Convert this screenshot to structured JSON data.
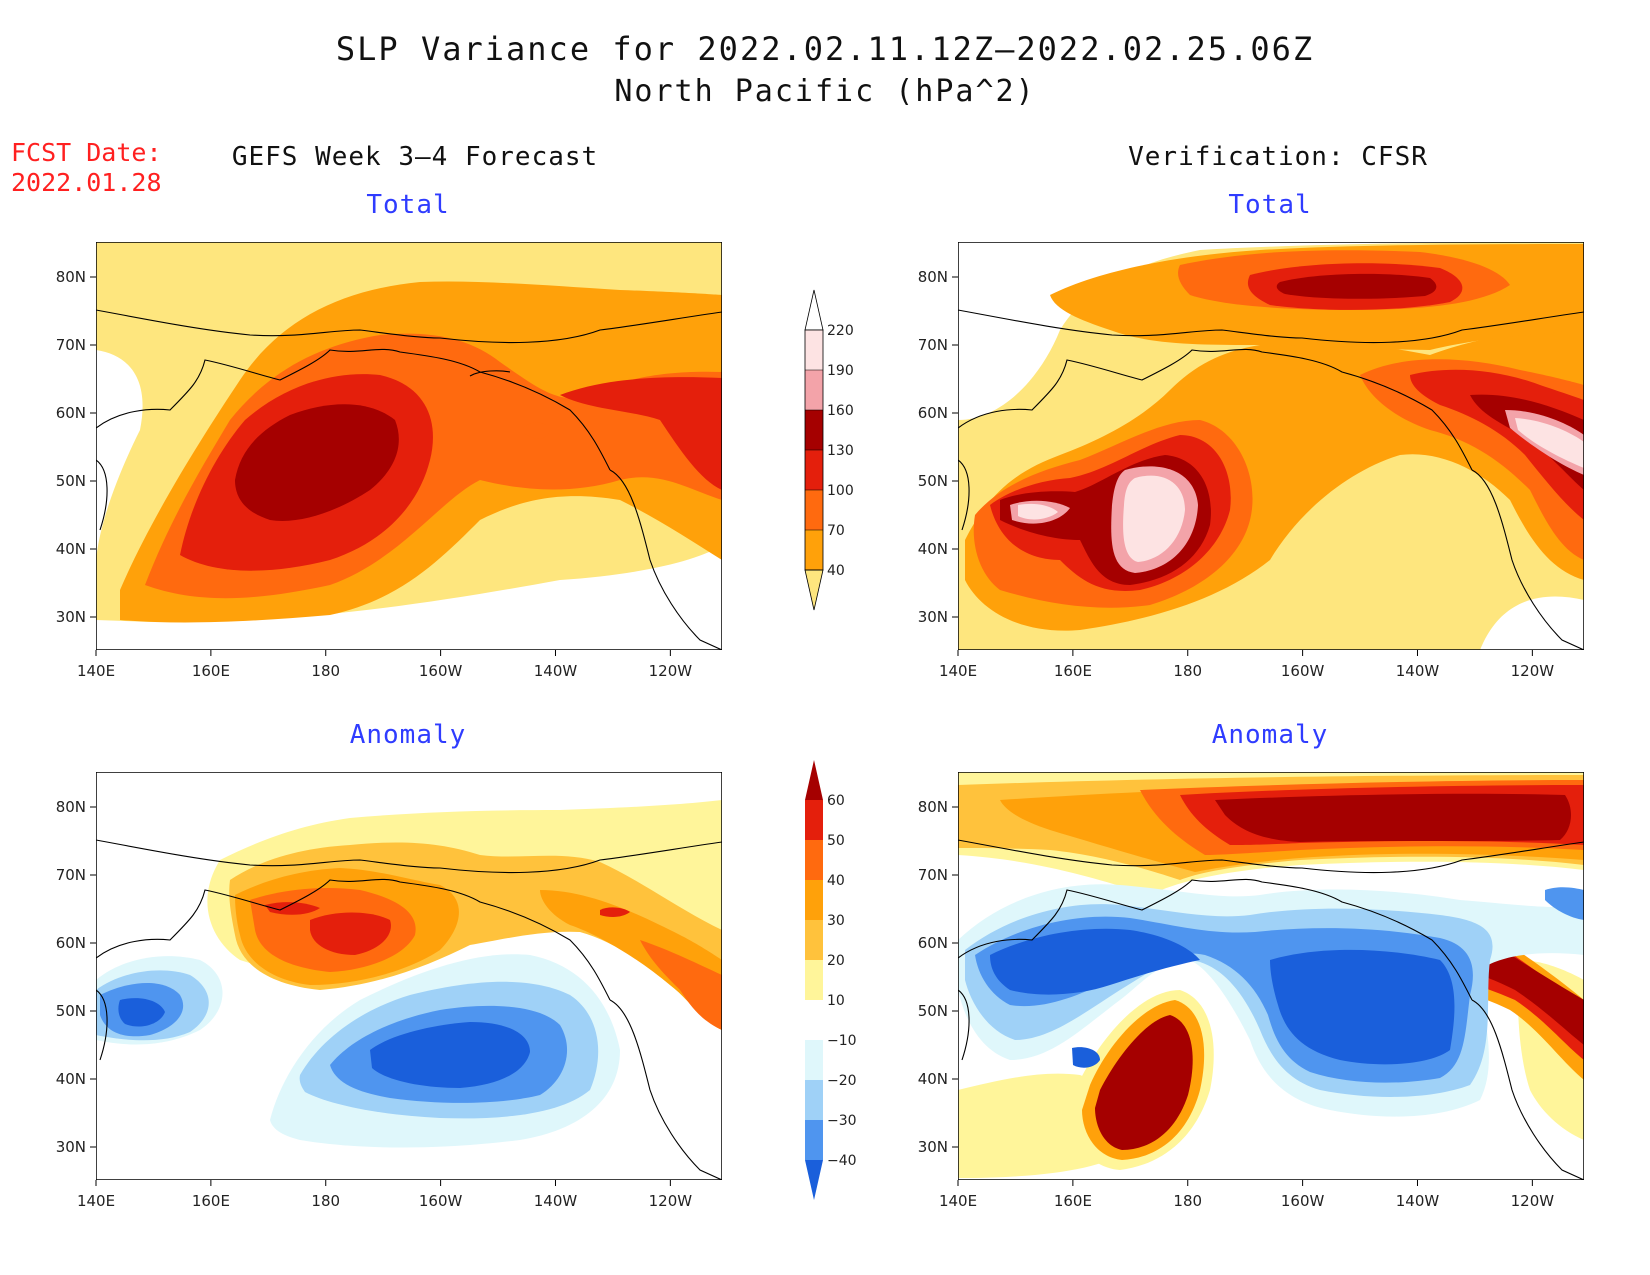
{
  "title": "SLP Variance for 2022.02.11.12Z–2022.02.25.06Z",
  "subtitle": "North Pacific (hPa^2)",
  "fcst_date_label": "FCST Date:",
  "fcst_date_value": "2022.01.28",
  "left_column_title": "GEFS Week 3–4 Forecast",
  "right_column_title": "Verification: CFSR",
  "panels": [
    {
      "title": "Total"
    },
    {
      "title": "Total"
    },
    {
      "title": "Anomaly"
    },
    {
      "title": "Anomaly"
    }
  ],
  "lon_labels": [
    "140E",
    "160E",
    "180",
    "160W",
    "140W",
    "120W"
  ],
  "lat_labels": [
    "80N",
    "70N",
    "60N",
    "50N",
    "40N",
    "30N"
  ],
  "colorbars": {
    "total": {
      "levels": [
        "40",
        "70",
        "100",
        "130",
        "160",
        "190",
        "220"
      ],
      "colors": [
        "#fee67e",
        "#ffa10a",
        "#ff6a0f",
        "#e41f0c",
        "#a50000",
        "#f3a3a9",
        "#fde3e3"
      ]
    },
    "anomaly": {
      "levels": [
        "60",
        "50",
        "40",
        "30",
        "20",
        "10",
        "−10",
        "−20",
        "−30",
        "−40"
      ],
      "colors": [
        "#a50000",
        "#e41f0c",
        "#ff6a0f",
        "#ffa10a",
        "#ffc23c",
        "#fff59a",
        "#ffffff",
        "#dff7fb",
        "#9fd1f7",
        "#4f95ef",
        "#1a5fdb"
      ]
    }
  },
  "legend_colors": {
    "total_levels_color": [
      "#fee67e",
      "#ffa10a",
      "#ff6a0f",
      "#e41f0c",
      "#a50000",
      "#f3a3a9",
      "#fde3e3"
    ],
    "anomaly_positive": [
      "#fff59a",
      "#ffc23c",
      "#ffa10a",
      "#ff6a0f",
      "#e41f0c",
      "#a50000"
    ],
    "anomaly_negative": [
      "#dff7fb",
      "#9fd1f7",
      "#4f95ef",
      "#1a5fdb"
    ]
  }
}
